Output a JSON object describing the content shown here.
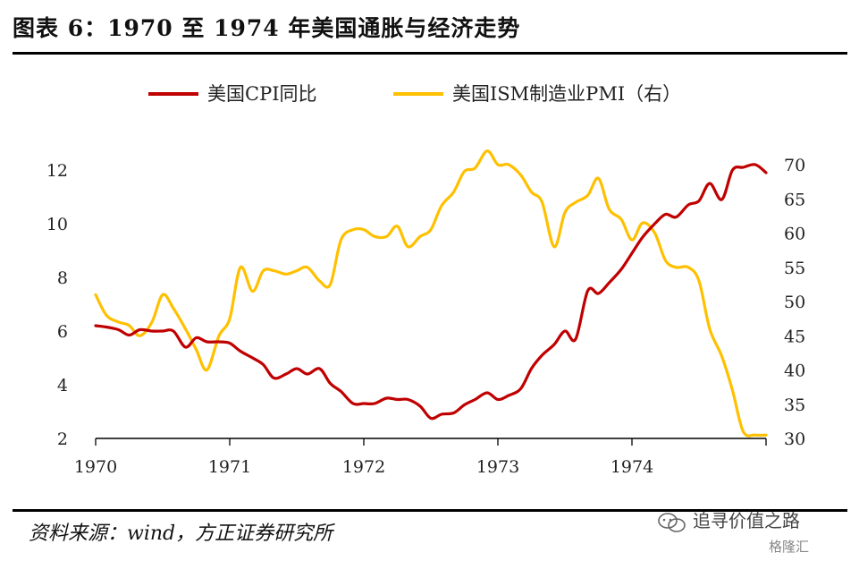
{
  "header": {
    "title": "图表 6：1970 至 1974 年美国通胀与经济走势"
  },
  "footer": {
    "source": "资料来源：wind，方正证券研究所"
  },
  "watermark": {
    "text": "追寻价值之路",
    "sub": "格隆汇"
  },
  "colors": {
    "cpi": "#c00000",
    "pmi": "#ffc000",
    "axis": "#000000"
  },
  "chart_data": {
    "type": "line",
    "title": "",
    "legend_position": "top",
    "grid": false,
    "x_ticks": [
      "1970",
      "1971",
      "1972",
      "1973",
      "1974"
    ],
    "xlim": [
      1970.0,
      1975.0
    ],
    "y_left": {
      "ticks": [
        "2",
        "4",
        "6",
        "8",
        "10",
        "12"
      ],
      "lim": [
        2,
        13
      ]
    },
    "y_right": {
      "ticks": [
        "30",
        "35",
        "40",
        "45",
        "50",
        "55",
        "60",
        "65",
        "70"
      ],
      "lim": [
        30,
        72
      ]
    },
    "series": [
      {
        "name": "美国CPI同比",
        "axis": "left",
        "color": "#c00000",
        "x": [
          1970.0,
          1970.08,
          1970.17,
          1970.25,
          1970.33,
          1970.42,
          1970.5,
          1970.58,
          1970.67,
          1970.75,
          1970.83,
          1970.92,
          1971.0,
          1971.08,
          1971.17,
          1971.25,
          1971.33,
          1971.42,
          1971.5,
          1971.58,
          1971.67,
          1971.75,
          1971.83,
          1971.92,
          1972.0,
          1972.08,
          1972.17,
          1972.25,
          1972.33,
          1972.42,
          1972.5,
          1972.58,
          1972.67,
          1972.75,
          1972.83,
          1972.92,
          1973.0,
          1973.08,
          1973.17,
          1973.25,
          1973.33,
          1973.42,
          1973.5,
          1973.58,
          1973.67,
          1973.75,
          1973.83,
          1973.92,
          1974.0,
          1974.08,
          1974.17,
          1974.25,
          1974.33,
          1974.42,
          1974.5,
          1974.58,
          1974.67,
          1974.75,
          1974.83,
          1974.92,
          1975.0
        ],
        "values": [
          6.2,
          6.15,
          6.05,
          5.85,
          6.05,
          6.0,
          6.0,
          6.0,
          5.4,
          5.75,
          5.6,
          5.6,
          5.55,
          5.25,
          5.0,
          4.75,
          4.25,
          4.4,
          4.6,
          4.4,
          4.6,
          4.05,
          3.75,
          3.3,
          3.3,
          3.3,
          3.5,
          3.45,
          3.45,
          3.2,
          2.75,
          2.9,
          2.95,
          3.25,
          3.45,
          3.7,
          3.45,
          3.6,
          3.85,
          4.6,
          5.1,
          5.5,
          6.0,
          5.7,
          7.5,
          7.4,
          7.8,
          8.3,
          8.9,
          9.5,
          10.0,
          10.35,
          10.25,
          10.7,
          10.85,
          11.5,
          10.9,
          12.0,
          12.1,
          12.2,
          11.9
        ]
      },
      {
        "name": "美国ISM制造业PMI（右）",
        "axis": "right",
        "color": "#ffc000",
        "x": [
          1970.0,
          1970.08,
          1970.17,
          1970.25,
          1970.33,
          1970.42,
          1970.5,
          1970.58,
          1970.67,
          1970.75,
          1970.83,
          1970.92,
          1971.0,
          1971.08,
          1971.17,
          1971.25,
          1971.33,
          1971.42,
          1971.5,
          1971.58,
          1971.67,
          1971.75,
          1971.83,
          1971.92,
          1972.0,
          1972.08,
          1972.17,
          1972.25,
          1972.33,
          1972.42,
          1972.5,
          1972.58,
          1972.67,
          1972.75,
          1972.83,
          1972.92,
          1973.0,
          1973.08,
          1973.17,
          1973.25,
          1973.33,
          1973.42,
          1973.5,
          1973.58,
          1973.67,
          1973.75,
          1973.83,
          1973.92,
          1974.0,
          1974.08,
          1974.17,
          1974.25,
          1974.33,
          1974.42,
          1974.5,
          1974.58,
          1974.67,
          1974.75,
          1974.83,
          1974.92,
          1975.0
        ],
        "values": [
          51.0,
          48.0,
          47.0,
          46.5,
          45.0,
          47.0,
          51.0,
          49.0,
          46.0,
          43.0,
          40.0,
          45.0,
          47.5,
          55.0,
          51.5,
          54.5,
          54.5,
          54.0,
          54.5,
          55.0,
          53.0,
          52.5,
          59.0,
          60.5,
          60.5,
          59.5,
          59.5,
          61.0,
          58.0,
          59.5,
          60.5,
          64.0,
          66.0,
          69.0,
          69.5,
          72.0,
          70.0,
          70.0,
          68.5,
          66.0,
          64.5,
          58.0,
          63.0,
          64.5,
          65.5,
          68.0,
          63.5,
          62.0,
          59.0,
          61.5,
          60.0,
          56.0,
          55.0,
          55.0,
          53.0,
          46.0,
          42.0,
          37.0,
          31.0,
          30.5,
          30.5
        ]
      }
    ]
  }
}
